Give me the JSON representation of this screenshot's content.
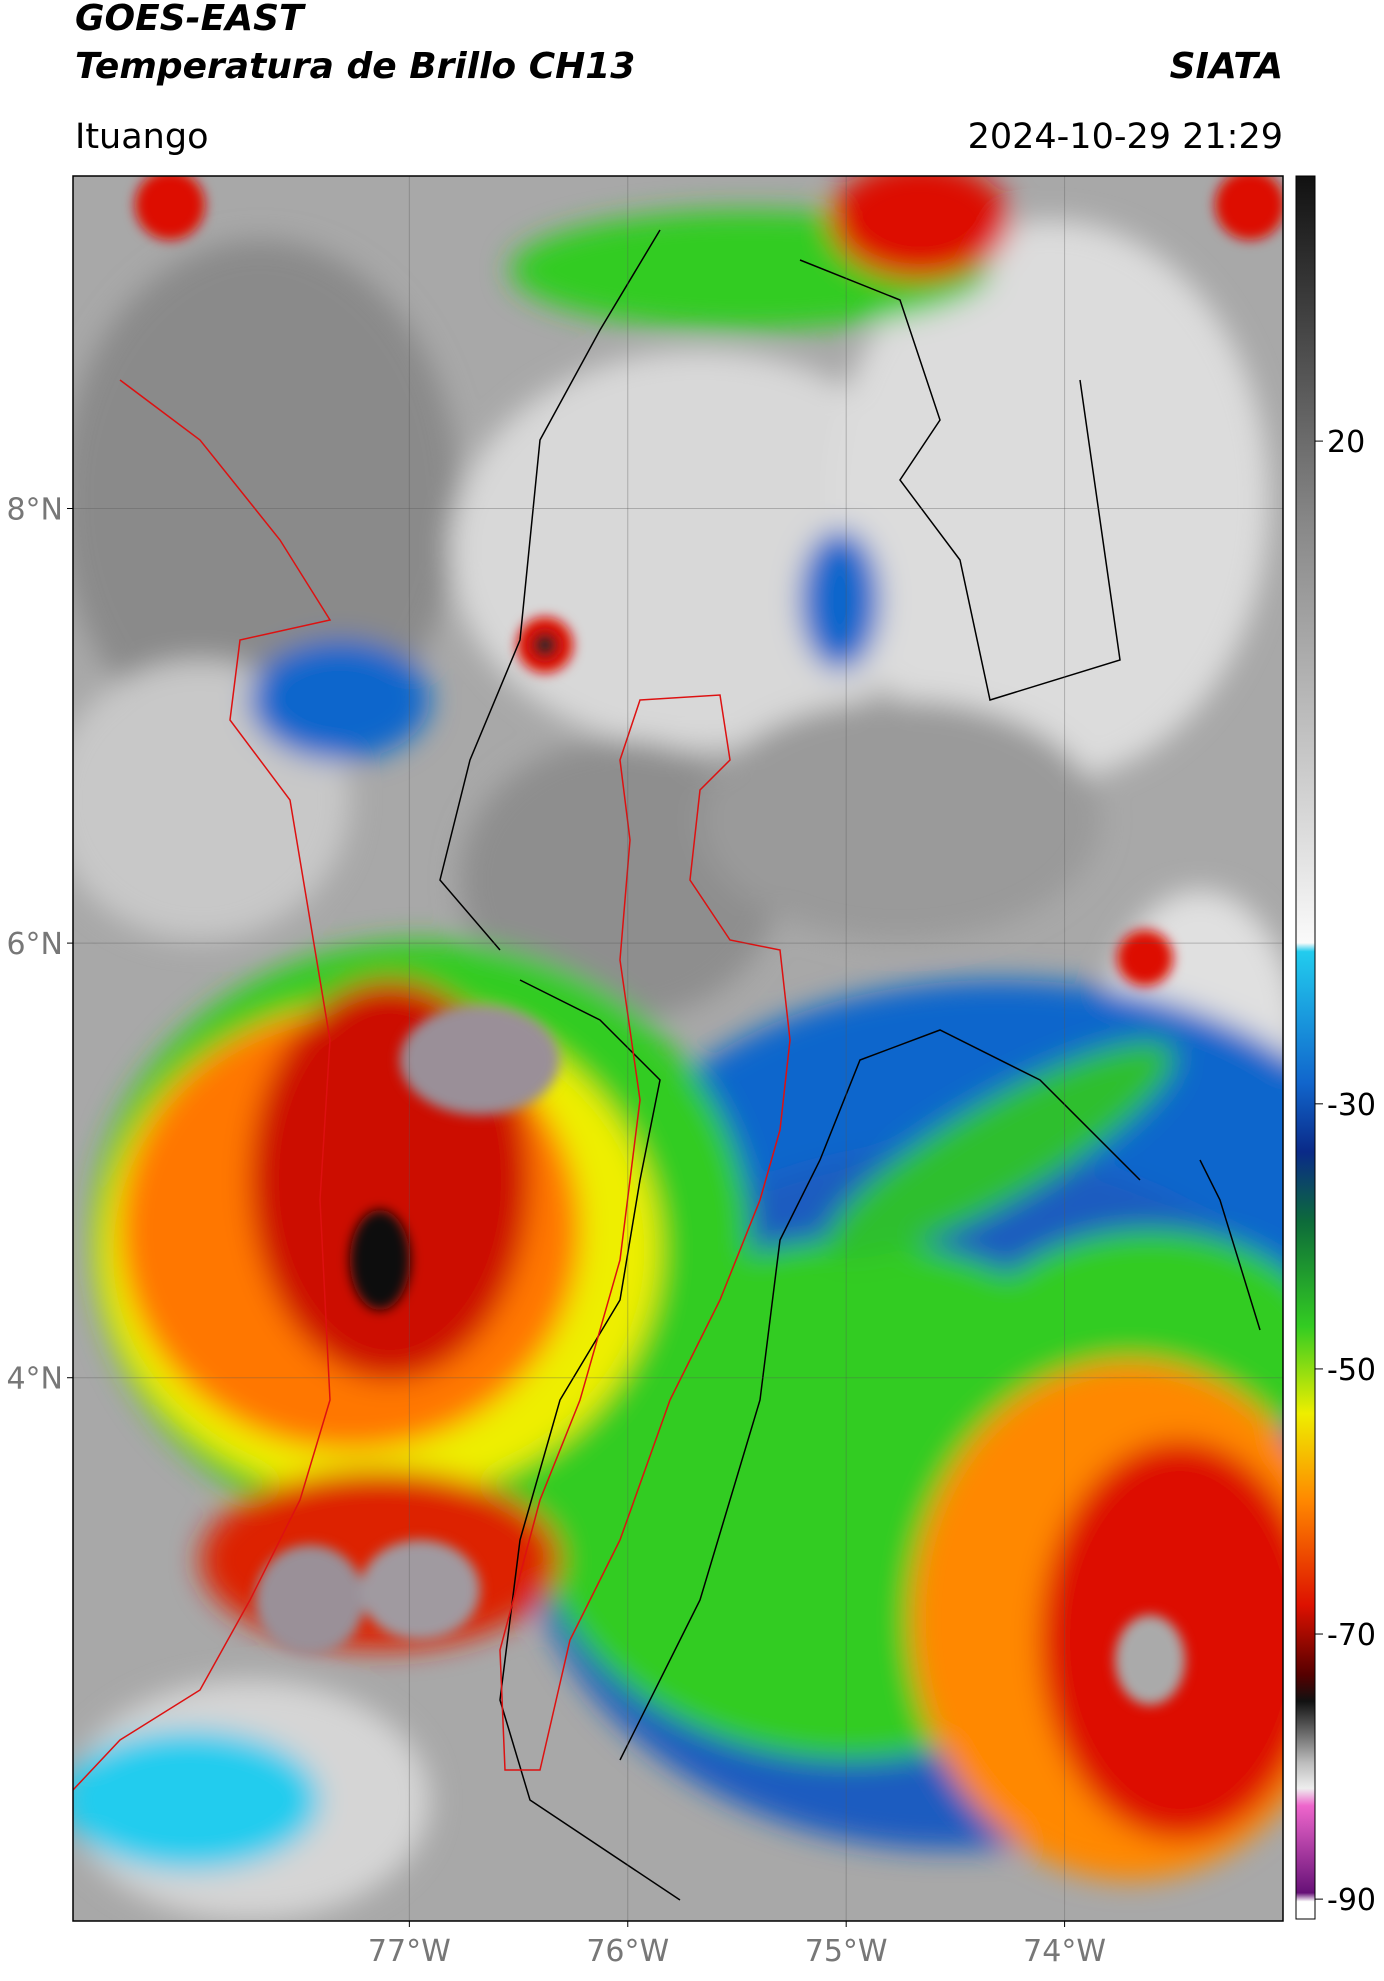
{
  "header": {
    "title": "GOES-EAST",
    "subtitle": "Temperatura de Brillo CH13",
    "source": "SIATA",
    "location": "Ituango",
    "timestamp": "2024-10-29 21:29"
  },
  "map": {
    "lonlim": [
      -78.54,
      -73.0
    ],
    "latlim": [
      1.5,
      9.53
    ],
    "lonticks": [
      {
        "value": -77,
        "label": "77°W"
      },
      {
        "value": -76,
        "label": "76°W"
      },
      {
        "value": -75,
        "label": "75°W"
      },
      {
        "value": -74,
        "label": "74°W"
      }
    ],
    "latticks": [
      {
        "value": 8,
        "label": "8°N"
      },
      {
        "value": 6,
        "label": "6°N"
      },
      {
        "value": 4,
        "label": "4°N"
      }
    ],
    "grid": true
  },
  "colorbar": {
    "lim": [
      -91.5,
      40
    ],
    "ticks": [
      20,
      -30,
      -50,
      -70,
      -90
    ]
  }
}
